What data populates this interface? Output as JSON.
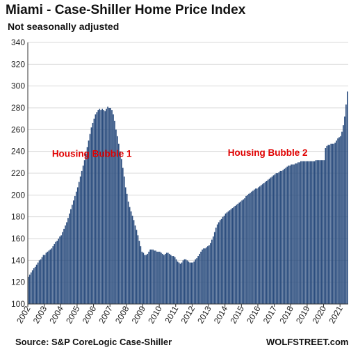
{
  "title": "Miami - Case-Shiller Home Price Index",
  "subtitle": "Not seasonally adjusted",
  "source": "Source: S&P CoreLogic Case-Shiller",
  "brand": "WOLFSTREET.com",
  "colors": {
    "bar": "#2b4d7e",
    "annotation": "#e00000",
    "grid": "#d9d9d9"
  },
  "chart_data": {
    "type": "bar",
    "ylim": [
      100,
      340
    ],
    "yticks": [
      "100",
      "120",
      "140",
      "160",
      "180",
      "200",
      "220",
      "240",
      "260",
      "280",
      "300",
      "320",
      "340"
    ],
    "xticks": [
      "2002",
      "2003",
      "2004",
      "2005",
      "2006",
      "2007",
      "2008",
      "2009",
      "2010",
      "2011",
      "2012",
      "2013",
      "2014",
      "2015",
      "2016",
      "2017",
      "2018",
      "2019",
      "2020",
      "2021"
    ],
    "grid": true,
    "annotations": [
      {
        "text": "Housing Bubble 1",
        "x": 2005.9,
        "y": 235
      },
      {
        "text": "Housing Bubble 2",
        "x": 2016.6,
        "y": 236
      }
    ],
    "frequency": "monthly",
    "start": "2002-01",
    "end": "2021-06",
    "series": [
      {
        "name": "",
        "yearly_values": {
          "2002": [
            125,
            127,
            129,
            131,
            133,
            134,
            136,
            138,
            140,
            141,
            143,
            145
          ],
          "2003": [
            145,
            147,
            148,
            149,
            150,
            151,
            153,
            155,
            157,
            158,
            160,
            162
          ],
          "2004": [
            163,
            166,
            169,
            172,
            175,
            179,
            183,
            187,
            191,
            195,
            199,
            203
          ],
          "2005": [
            207,
            212,
            217,
            222,
            227,
            232,
            238,
            244,
            250,
            256,
            262,
            266
          ],
          "2006": [
            270,
            274,
            276,
            278,
            279,
            278,
            279,
            278,
            277,
            279,
            281,
            280
          ],
          "2007": [
            280,
            278,
            274,
            268,
            260,
            254,
            247,
            240,
            233,
            225,
            217,
            207
          ],
          "2008": [
            201,
            194,
            189,
            185,
            181,
            177,
            172,
            168,
            163,
            158,
            153,
            148
          ],
          "2009": [
            147,
            145,
            145,
            146,
            148,
            150,
            150,
            150,
            149,
            149,
            148,
            148
          ],
          "2010": [
            148,
            147,
            146,
            145,
            146,
            147,
            147,
            146,
            145,
            144,
            144,
            143
          ],
          "2011": [
            141,
            139,
            138,
            137,
            138,
            140,
            141,
            141,
            140,
            139,
            138,
            138
          ],
          "2012": [
            138,
            139,
            141,
            142,
            144,
            146,
            148,
            150,
            151,
            151,
            152,
            153
          ],
          "2013": [
            154,
            156,
            159,
            162,
            166,
            170,
            173,
            175,
            177,
            178,
            180,
            181
          ],
          "2014": [
            183,
            184,
            185,
            186,
            187,
            188,
            189,
            190,
            191,
            192,
            193,
            194
          ],
          "2015": [
            195,
            196,
            197,
            199,
            200,
            201,
            202,
            203,
            204,
            205,
            206,
            206
          ],
          "2016": [
            207,
            208,
            209,
            210,
            211,
            212,
            213,
            214,
            215,
            216,
            217,
            218
          ],
          "2017": [
            219,
            220,
            220,
            221,
            222,
            222,
            223,
            224,
            225,
            226,
            227,
            227
          ],
          "2018": [
            228,
            228,
            228,
            229,
            229,
            230,
            230,
            231,
            231,
            231,
            231,
            231
          ],
          "2019": [
            231,
            231,
            231,
            231,
            231,
            231,
            232,
            232,
            232,
            232,
            232,
            232
          ],
          "2020": [
            232,
            243,
            245,
            246,
            246,
            247,
            247,
            247,
            248,
            250,
            252,
            253
          ],
          "2021": [
            254,
            258,
            264,
            272,
            283,
            295
          ]
        }
      }
    ]
  }
}
